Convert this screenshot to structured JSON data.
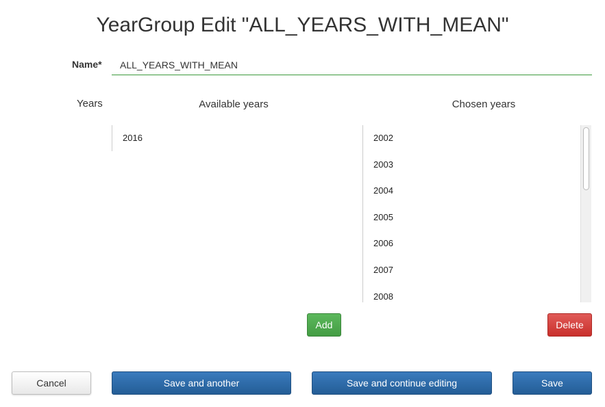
{
  "page": {
    "title": "YearGroup Edit \"ALL_YEARS_WITH_MEAN\""
  },
  "form": {
    "name_label": "Name*",
    "name_value": "ALL_YEARS_WITH_MEAN",
    "years_label": "Years"
  },
  "selector": {
    "available_header": "Available years",
    "chosen_header": "Chosen years",
    "available": [
      "2016"
    ],
    "chosen": [
      "2002",
      "2003",
      "2004",
      "2005",
      "2006",
      "2007",
      "2008"
    ],
    "add_label": "Add",
    "delete_label": "Delete"
  },
  "actions": {
    "cancel_label": "Cancel",
    "save_another_label": "Save and another",
    "save_continue_label": "Save and continue editing",
    "save_label": "Save"
  },
  "colors": {
    "add": "#5cb85c",
    "delete": "#d9534f",
    "primary": "#2f6ca8",
    "input_underline": "#3c9a3c"
  }
}
